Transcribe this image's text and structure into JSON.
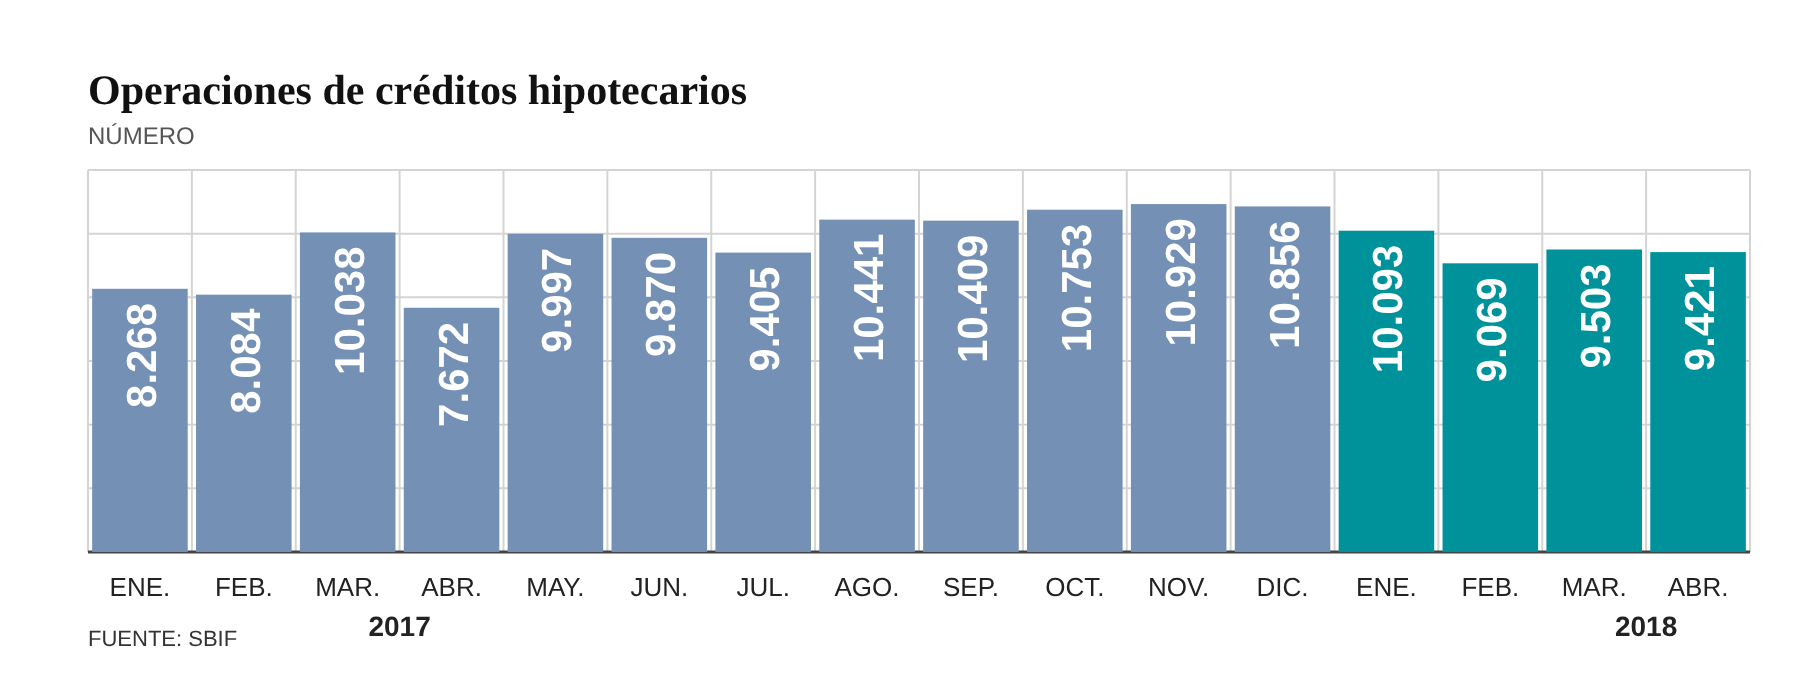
{
  "chart_data": {
    "type": "bar",
    "title": "Operaciones de créditos hipotecarios",
    "subtitle": "NÚMERO",
    "categories": [
      "ENE.",
      "FEB.",
      "MAR.",
      "ABR.",
      "MAY.",
      "JUN.",
      "JUL.",
      "AGO.",
      "SEP.",
      "OCT.",
      "NOV.",
      "DIC.",
      "ENE.",
      "FEB.",
      "MAR.",
      "ABR."
    ],
    "values": [
      8268,
      8084,
      10038,
      7672,
      9997,
      9870,
      9405,
      10441,
      10409,
      10753,
      10929,
      10856,
      10093,
      9069,
      9503,
      9421
    ],
    "value_labels": [
      "8.268",
      "8.084",
      "10.038",
      "7.672",
      "9.997",
      "9.870",
      "9.405",
      "10.441",
      "10.409",
      "10.753",
      "10.929",
      "10.856",
      "10.093",
      "9.069",
      "9.503",
      "9.421"
    ],
    "colors": [
      "#7491b5",
      "#7491b5",
      "#7491b5",
      "#7491b5",
      "#7491b5",
      "#7491b5",
      "#7491b5",
      "#7491b5",
      "#7491b5",
      "#7491b5",
      "#7491b5",
      "#7491b5",
      "#00929b",
      "#00929b",
      "#00929b",
      "#00929b"
    ],
    "ylim": [
      0,
      12000
    ],
    "yticks": [
      {
        "value": 0,
        "label": null
      },
      {
        "value": 2000,
        "label": null
      },
      {
        "value": 4000,
        "label": null
      },
      {
        "value": 6000,
        "label": null
      },
      {
        "value": 8000,
        "label": null
      },
      {
        "value": 10000,
        "label": null
      },
      {
        "value": 12000,
        "label": null
      }
    ],
    "tick_labels": "x",
    "grid": true,
    "annotations": [
      "2017",
      "2018",
      "FUENTE: SBIF"
    ]
  }
}
